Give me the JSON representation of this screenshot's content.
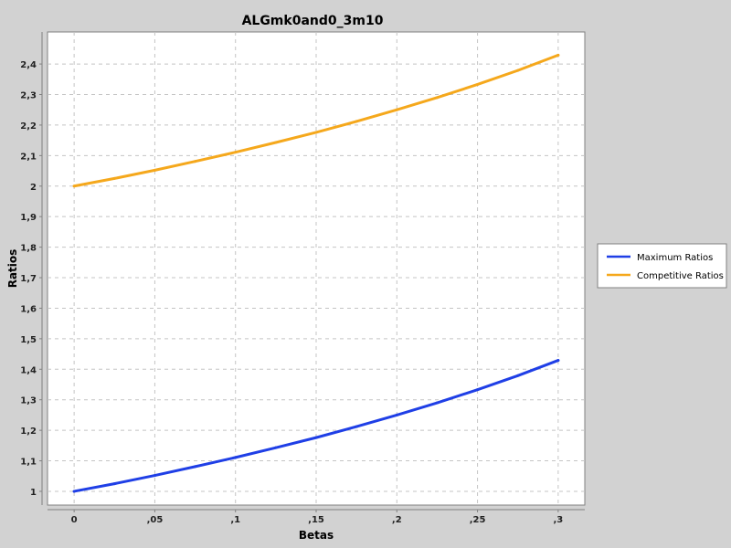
{
  "chart_data": {
    "type": "line",
    "title": "ALGmk0and0_3m10",
    "xlabel": "Betas",
    "ylabel": "Ratios",
    "xlim": [
      -0.0165,
      0.3165
    ],
    "ylim": [
      0.955,
      2.505
    ],
    "xticks": [
      0,
      0.05,
      0.1,
      0.15,
      0.2,
      0.25,
      0.3
    ],
    "xtick_labels": [
      "0",
      ",05",
      ",1",
      ",15",
      ",2",
      ",25",
      ",3"
    ],
    "yticks": [
      1,
      1.1,
      1.2,
      1.3,
      1.4,
      1.5,
      1.6,
      1.7,
      1.8,
      1.9,
      2,
      2.1,
      2.2,
      2.3,
      2.4
    ],
    "ytick_labels": [
      "1",
      "1,1",
      "1,2",
      "1,3",
      "1,4",
      "1,5",
      "1,6",
      "1,7",
      "1,8",
      "1,9",
      "2",
      "2,1",
      "2,2",
      "2,3",
      "2,4"
    ],
    "grid": true,
    "legend_position": "right",
    "x": [
      0,
      0.025,
      0.05,
      0.075,
      0.1,
      0.125,
      0.15,
      0.175,
      0.2,
      0.225,
      0.25,
      0.275,
      0.3
    ],
    "series": [
      {
        "name": "Maximum Ratios",
        "color": "#1f3fe6",
        "values": [
          1.0,
          1.025,
          1.052,
          1.081,
          1.111,
          1.143,
          1.176,
          1.212,
          1.25,
          1.29,
          1.333,
          1.379,
          1.429
        ]
      },
      {
        "name": "Competitive Ratios",
        "color": "#f5a81c",
        "values": [
          2.0,
          2.025,
          2.052,
          2.081,
          2.111,
          2.143,
          2.176,
          2.212,
          2.25,
          2.29,
          2.333,
          2.379,
          2.429
        ]
      }
    ]
  }
}
